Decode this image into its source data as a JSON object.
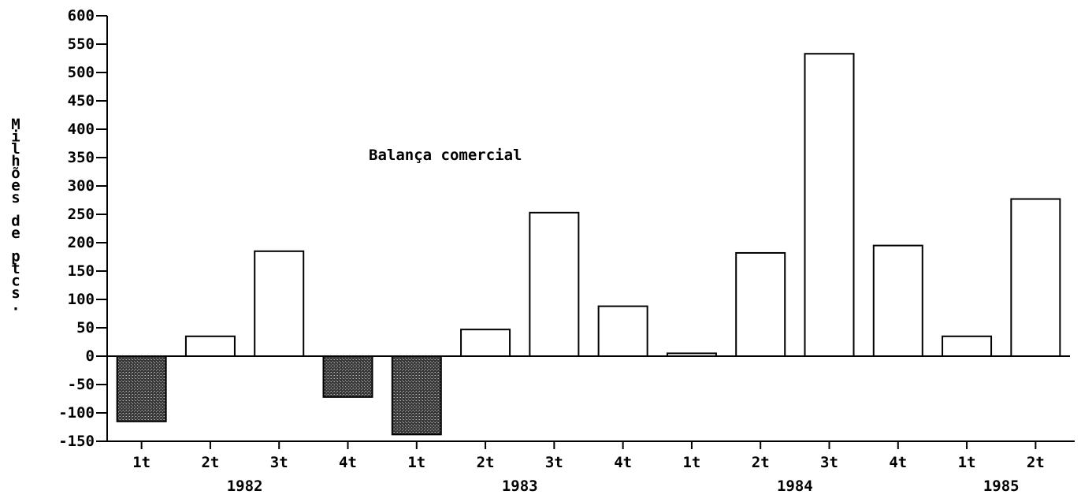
{
  "chart_data": {
    "type": "bar",
    "title": "Balança comercial",
    "ylabel": "Milhões de ptcs.",
    "xlabel": "",
    "ylim": [
      -150,
      600
    ],
    "yticks": [
      600,
      550,
      500,
      450,
      400,
      350,
      300,
      250,
      200,
      150,
      100,
      50,
      0,
      -50,
      -100,
      -150
    ],
    "categories": [
      "1t",
      "2t",
      "3t",
      "4t",
      "1t",
      "2t",
      "3t",
      "4t",
      "1t",
      "2t",
      "3t",
      "4t",
      "1t",
      "2t"
    ],
    "years": [
      {
        "label": "1982",
        "quarters": 4
      },
      {
        "label": "1983",
        "quarters": 4
      },
      {
        "label": "1984",
        "quarters": 4
      },
      {
        "label": "1985",
        "quarters": 2
      }
    ],
    "values": [
      -115,
      35,
      185,
      -72,
      -138,
      47,
      253,
      88,
      5,
      182,
      533,
      195,
      35,
      277
    ],
    "grid": false,
    "colors": {
      "positive": "#ffffff",
      "negative": "#555555",
      "stroke": "#000000"
    }
  }
}
